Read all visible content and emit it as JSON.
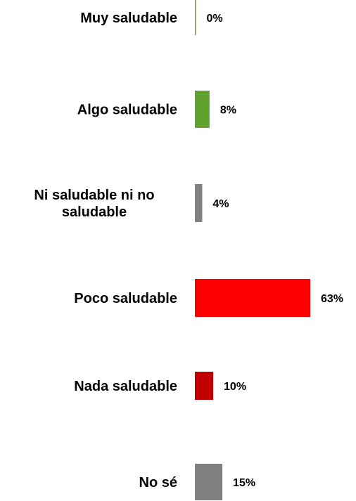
{
  "chart_data": {
    "type": "bar",
    "orientation": "horizontal",
    "categories": [
      [
        "Muy saludable"
      ],
      [
        "Algo saludable"
      ],
      [
        "Ni saludable ni no",
        "saludable"
      ],
      [
        "Poco saludable"
      ],
      [
        "Nada saludable"
      ],
      [
        "No sé"
      ]
    ],
    "values": [
      0,
      8,
      4,
      63,
      10,
      15
    ],
    "value_labels": [
      "0%",
      "8%",
      "4%",
      "63%",
      "10%",
      "15%"
    ],
    "colors": [
      "#5fa22e",
      "#5fa22e",
      "#808080",
      "#ff0000",
      "#c00000",
      "#808080"
    ],
    "xlim": [
      0,
      63
    ],
    "grid": false,
    "legend": "none"
  }
}
